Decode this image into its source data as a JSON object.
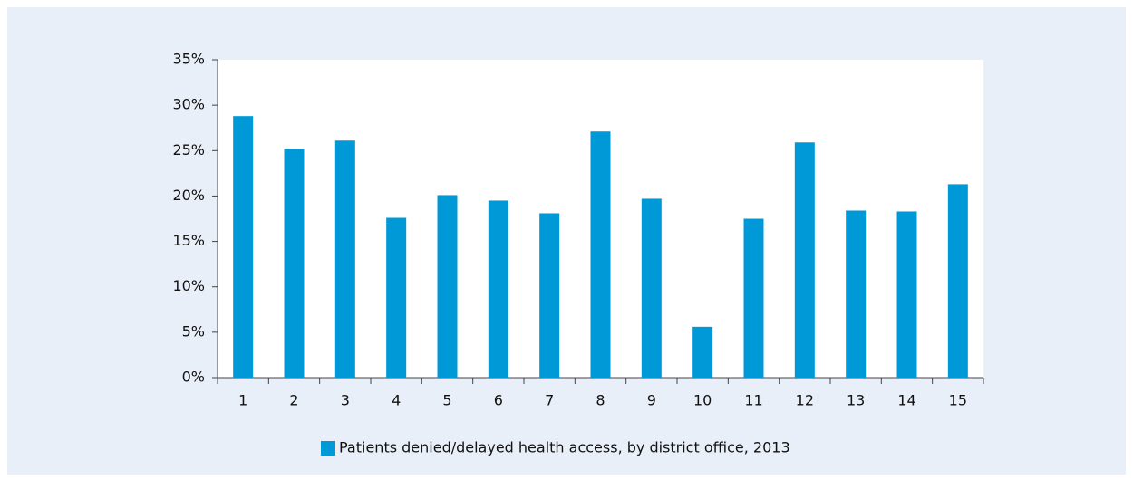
{
  "chart_data": {
    "type": "bar",
    "categories": [
      "1",
      "2",
      "3",
      "4",
      "5",
      "6",
      "7",
      "8",
      "9",
      "10",
      "11",
      "12",
      "13",
      "14",
      "15"
    ],
    "series": [
      {
        "name": "Patients denied/delayed health access, by district office, 2013",
        "color": "#0099d8",
        "values": [
          28.8,
          25.2,
          26.1,
          17.6,
          20.1,
          19.5,
          18.1,
          27.1,
          19.7,
          5.6,
          17.5,
          25.9,
          18.4,
          18.3,
          21.3
        ]
      }
    ],
    "ylim": [
      0,
      35
    ],
    "yticks": [
      {
        "value": 0,
        "label": "0%"
      },
      {
        "value": 5,
        "label": "5%"
      },
      {
        "value": 10,
        "label": "10%"
      },
      {
        "value": 15,
        "label": "15%"
      },
      {
        "value": 20,
        "label": "20%"
      },
      {
        "value": 25,
        "label": "25%"
      },
      {
        "value": 30,
        "label": "30%"
      },
      {
        "value": 35,
        "label": "35%"
      }
    ],
    "legend": "bottom"
  }
}
